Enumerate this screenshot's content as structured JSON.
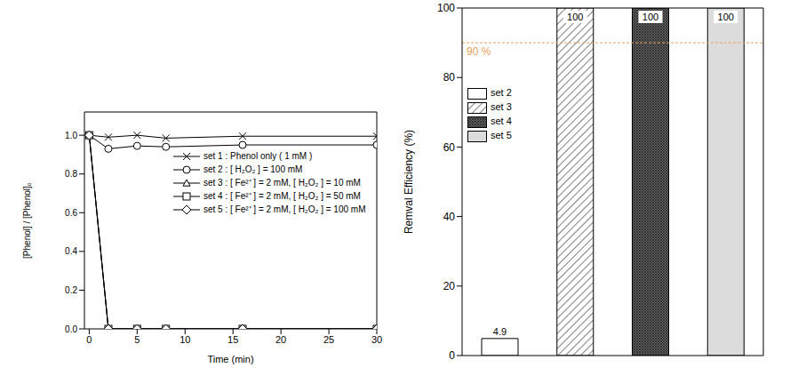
{
  "chart_data": [
    {
      "type": "line",
      "x_label": "Time (min)",
      "y_label": "[Phenol] / [Phenol]₀",
      "x": [
        0,
        2,
        5,
        8,
        16,
        30
      ],
      "series": [
        {
          "name": "set 1 : Phenol only ( 1 mM )",
          "color": "#000000",
          "marker": "x",
          "values": [
            1.0,
            0.99,
            1.0,
            0.985,
            0.995,
            0.995
          ]
        },
        {
          "name": "set 2 : [ H₂O₂ ] = 100 mM",
          "color": "#000000",
          "marker": "circle",
          "values": [
            1.0,
            0.93,
            0.945,
            0.94,
            0.95,
            0.95
          ]
        },
        {
          "name": "set 3 : [ Fe²⁺ ] = 2 mM, [ H₂O₂ ] = 10 mM",
          "color": "#000000",
          "marker": "triangle",
          "values": [
            1.0,
            0,
            0,
            0,
            0,
            0
          ]
        },
        {
          "name": "set 4 : [ Fe²⁺ ] = 2 mM, [ H₂O₂ ] = 50 mM",
          "color": "#000000",
          "marker": "square",
          "values": [
            1.0,
            0,
            0,
            0,
            0,
            0
          ]
        },
        {
          "name": "set 5 : [ Fe²⁺ ] = 2 mM, [ H₂O₂ ] = 100 mM",
          "color": "#000000",
          "marker": "diamond",
          "values": [
            1.0,
            0,
            0,
            0,
            0,
            0
          ]
        }
      ],
      "xlim": [
        -0.5,
        30
      ],
      "xticks": [
        0,
        5,
        10,
        15,
        20,
        25,
        30
      ],
      "ylim": [
        0,
        1.12
      ],
      "yticks": [
        {
          "value": 0,
          "label": "0.0"
        },
        0.2,
        0.4,
        0.6,
        0.8,
        {
          "value": 1,
          "label": "1.0"
        }
      ],
      "legend": "upper right",
      "grid": false
    },
    {
      "type": "bar",
      "y_label": "Remval Efficiency (%)",
      "categories": [
        "set 2",
        "set 3",
        "set 4",
        "set 5"
      ],
      "values": [
        4.9,
        100,
        100,
        100
      ],
      "colors": [
        "#ffffff",
        "#ffffff",
        "#666666",
        "#dcdcdc"
      ],
      "ylim": [
        0,
        100
      ],
      "yticks": [
        0,
        20,
        40,
        60,
        80,
        100
      ],
      "data_labels": true,
      "tick_labels": "y",
      "legend": "upper left",
      "annotations": [
        {
          "y": 90,
          "text": "90 %",
          "color": "#e8a060"
        }
      ],
      "grid": false
    }
  ]
}
